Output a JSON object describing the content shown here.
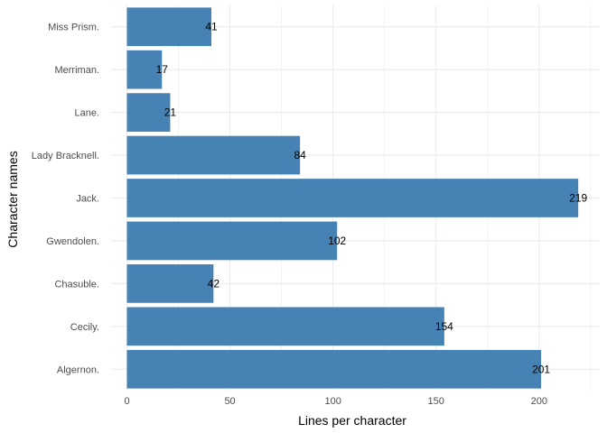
{
  "chart_data": {
    "type": "bar",
    "orientation": "horizontal",
    "categories": [
      "Algernon.",
      "Cecily.",
      "Chasuble.",
      "Gwendolen.",
      "Jack.",
      "Lady Bracknell.",
      "Lane.",
      "Merriman.",
      "Miss Prism."
    ],
    "values": [
      201,
      154,
      42,
      102,
      219,
      84,
      21,
      17,
      41
    ],
    "xlabel": "Lines per character",
    "ylabel": "Character names",
    "xlim": [
      0,
      225
    ],
    "xticks": [
      0,
      50,
      100,
      150,
      200
    ],
    "grid": true,
    "legend": "none",
    "bar_color": "#4682b4",
    "grid_color": "#ebebeb"
  }
}
